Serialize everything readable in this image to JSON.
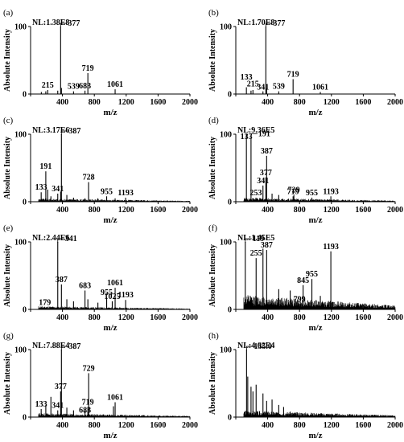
{
  "chart_data": [
    {
      "type": "line",
      "panel_label": "(a)",
      "nl": "NL:1.38E8",
      "xlabel": "m/z",
      "ylabel": "Absolute Intensity",
      "xlim": [
        0,
        2000
      ],
      "ylim": [
        0,
        100
      ],
      "xticks": [
        "0",
        "400",
        "800",
        "1200",
        "1600",
        "2000"
      ],
      "yticks": [
        "0",
        "100"
      ],
      "noise": 0.3,
      "peaks": [
        {
          "x": 135,
          "y": 3
        },
        {
          "x": 191,
          "y": 4
        },
        {
          "x": 215,
          "y": 6
        },
        {
          "x": 341,
          "y": 5
        },
        {
          "x": 377,
          "y": 100
        },
        {
          "x": 387,
          "y": 9
        },
        {
          "x": 539,
          "y": 4
        },
        {
          "x": 683,
          "y": 5
        },
        {
          "x": 719,
          "y": 31
        },
        {
          "x": 1061,
          "y": 7
        }
      ],
      "annotations": [
        {
          "text": "377",
          "x": 377,
          "y": 100,
          "leader": true
        },
        {
          "text": "215",
          "x": 215,
          "y": 6
        },
        {
          "text": "539",
          "x": 539,
          "y": 4
        },
        {
          "text": "683",
          "x": 683,
          "y": 5
        },
        {
          "text": "719",
          "x": 719,
          "y": 31
        },
        {
          "text": "1061",
          "x": 1061,
          "y": 7
        }
      ]
    },
    {
      "type": "line",
      "panel_label": "(b)",
      "nl": "NL:1.70E8",
      "xlabel": "m/z",
      "ylabel": "Absolute Intensity",
      "xlim": [
        0,
        2000
      ],
      "ylim": [
        0,
        100
      ],
      "xticks": [
        "0",
        "400",
        "800",
        "1200",
        "1600",
        "2000"
      ],
      "yticks": [
        "0",
        "100"
      ],
      "noise": 0.3,
      "peaks": [
        {
          "x": 133,
          "y": 10
        },
        {
          "x": 191,
          "y": 5
        },
        {
          "x": 215,
          "y": 6
        },
        {
          "x": 341,
          "y": 4
        },
        {
          "x": 377,
          "y": 100
        },
        {
          "x": 387,
          "y": 8
        },
        {
          "x": 539,
          "y": 4
        },
        {
          "x": 719,
          "y": 22
        },
        {
          "x": 1061,
          "y": 3
        }
      ],
      "annotations": [
        {
          "text": "377",
          "x": 377,
          "y": 100,
          "leader": true
        },
        {
          "text": "133",
          "x": 133,
          "y": 18
        },
        {
          "text": "215",
          "x": 215,
          "y": 8
        },
        {
          "text": "341",
          "x": 341,
          "y": 3
        },
        {
          "text": "539",
          "x": 539,
          "y": 4
        },
        {
          "text": "719",
          "x": 719,
          "y": 22
        },
        {
          "text": "1061",
          "x": 1061,
          "y": 3
        }
      ]
    },
    {
      "type": "line",
      "panel_label": "(c)",
      "nl": "NL:3.17E6",
      "xlabel": "m/z",
      "ylabel": "Absolute Intensity",
      "xlim": [
        0,
        2000
      ],
      "ylim": [
        0,
        100
      ],
      "xticks": [
        "0",
        "400",
        "800",
        "1200",
        "1600",
        "2000"
      ],
      "yticks": [
        "0",
        "100"
      ],
      "noise": 4,
      "peaks": [
        {
          "x": 133,
          "y": 14
        },
        {
          "x": 191,
          "y": 45
        },
        {
          "x": 215,
          "y": 18
        },
        {
          "x": 255,
          "y": 8
        },
        {
          "x": 341,
          "y": 12
        },
        {
          "x": 377,
          "y": 15
        },
        {
          "x": 387,
          "y": 100
        },
        {
          "x": 455,
          "y": 10
        },
        {
          "x": 539,
          "y": 6
        },
        {
          "x": 683,
          "y": 5
        },
        {
          "x": 728,
          "y": 29
        },
        {
          "x": 845,
          "y": 5
        },
        {
          "x": 955,
          "y": 8
        },
        {
          "x": 1061,
          "y": 5
        },
        {
          "x": 1193,
          "y": 6
        }
      ],
      "annotations": [
        {
          "text": "387",
          "x": 387,
          "y": 100,
          "leader": true
        },
        {
          "text": "191",
          "x": 191,
          "y": 45
        },
        {
          "text": "133",
          "x": 133,
          "y": 14
        },
        {
          "text": "341",
          "x": 341,
          "y": 12
        },
        {
          "text": "728",
          "x": 728,
          "y": 29
        },
        {
          "text": "955",
          "x": 955,
          "y": 8
        },
        {
          "text": "1193",
          "x": 1193,
          "y": 6
        }
      ]
    },
    {
      "type": "line",
      "panel_label": "(d)",
      "nl": "NL:9.36E5",
      "xlabel": "m/z",
      "ylabel": "Absolute Intensity",
      "xlim": [
        0,
        2000
      ],
      "ylim": [
        0,
        100
      ],
      "xticks": [
        "0",
        "400",
        "800",
        "1200",
        "1600",
        "2000"
      ],
      "yticks": [
        "0",
        "100"
      ],
      "noise": 5,
      "peaks": [
        {
          "x": 133,
          "y": 100
        },
        {
          "x": 191,
          "y": 96
        },
        {
          "x": 253,
          "y": 6
        },
        {
          "x": 341,
          "y": 24
        },
        {
          "x": 377,
          "y": 36
        },
        {
          "x": 387,
          "y": 68
        },
        {
          "x": 455,
          "y": 12
        },
        {
          "x": 539,
          "y": 10
        },
        {
          "x": 719,
          "y": 8
        },
        {
          "x": 729,
          "y": 10
        },
        {
          "x": 955,
          "y": 6
        },
        {
          "x": 1193,
          "y": 8
        }
      ],
      "annotations": [
        {
          "text": "191",
          "x": 191,
          "y": 96,
          "leader": true
        },
        {
          "text": "133",
          "x": 133,
          "y": 100
        },
        {
          "text": "387",
          "x": 387,
          "y": 68
        },
        {
          "text": "377",
          "x": 377,
          "y": 36
        },
        {
          "text": "341",
          "x": 341,
          "y": 24
        },
        {
          "text": "253",
          "x": 253,
          "y": 6
        },
        {
          "text": "719",
          "x": 719,
          "y": 8
        },
        {
          "text": "729",
          "x": 729,
          "y": 10
        },
        {
          "text": "955",
          "x": 955,
          "y": 6
        },
        {
          "text": "1193",
          "x": 1193,
          "y": 8
        }
      ]
    },
    {
      "type": "line",
      "panel_label": "(e)",
      "nl": "NL:2.44E6",
      "xlabel": "m/z",
      "ylabel": "Absolute Intensity",
      "xlim": [
        0,
        2000
      ],
      "ylim": [
        0,
        100
      ],
      "xticks": [
        "0",
        "400",
        "800",
        "1200",
        "1600",
        "2000"
      ],
      "yticks": [
        "0",
        "100"
      ],
      "noise": 4,
      "peaks": [
        {
          "x": 179,
          "y": 3
        },
        {
          "x": 341,
          "y": 100
        },
        {
          "x": 387,
          "y": 37
        },
        {
          "x": 455,
          "y": 15
        },
        {
          "x": 539,
          "y": 12
        },
        {
          "x": 683,
          "y": 28
        },
        {
          "x": 719,
          "y": 15
        },
        {
          "x": 845,
          "y": 10
        },
        {
          "x": 955,
          "y": 18
        },
        {
          "x": 1025,
          "y": 12
        },
        {
          "x": 1061,
          "y": 32
        },
        {
          "x": 1193,
          "y": 14
        }
      ],
      "annotations": [
        {
          "text": "341",
          "x": 341,
          "y": 100,
          "leader": true
        },
        {
          "text": "179",
          "x": 179,
          "y": 3
        },
        {
          "text": "387",
          "x": 387,
          "y": 37
        },
        {
          "text": "683",
          "x": 683,
          "y": 28
        },
        {
          "text": "955",
          "x": 955,
          "y": 18
        },
        {
          "text": "1025",
          "x": 1025,
          "y": 12
        },
        {
          "text": "1061",
          "x": 1061,
          "y": 32
        },
        {
          "text": "1193",
          "x": 1193,
          "y": 14
        }
      ]
    },
    {
      "type": "line",
      "panel_label": "(f)",
      "nl": "NL:1.45E5",
      "xlabel": "m/z",
      "ylabel": "Absolute Intensity",
      "xlim": [
        0,
        2000
      ],
      "ylim": [
        0,
        100
      ],
      "xticks": [
        "0",
        "400",
        "800",
        "1200",
        "1600",
        "2000"
      ],
      "yticks": [
        "0",
        "100"
      ],
      "noise": 18,
      "peaks": [
        {
          "x": 119,
          "y": 100
        },
        {
          "x": 255,
          "y": 76
        },
        {
          "x": 341,
          "y": 90
        },
        {
          "x": 387,
          "y": 88
        },
        {
          "x": 539,
          "y": 30
        },
        {
          "x": 683,
          "y": 28
        },
        {
          "x": 799,
          "y": 8
        },
        {
          "x": 845,
          "y": 36
        },
        {
          "x": 955,
          "y": 45
        },
        {
          "x": 1061,
          "y": 20
        },
        {
          "x": 1193,
          "y": 86
        }
      ],
      "annotations": [
        {
          "text": "119",
          "x": 119,
          "y": 100,
          "leader": true
        },
        {
          "text": "255",
          "x": 255,
          "y": 76
        },
        {
          "text": "387",
          "x": 387,
          "y": 88
        },
        {
          "text": "799",
          "x": 799,
          "y": 8
        },
        {
          "text": "845",
          "x": 845,
          "y": 36
        },
        {
          "text": "955",
          "x": 955,
          "y": 45
        },
        {
          "text": "1193",
          "x": 1193,
          "y": 86
        }
      ]
    },
    {
      "type": "line",
      "panel_label": "(g)",
      "nl": "NL:7.88E4",
      "xlabel": "m/z",
      "ylabel": "Absolute Intensity",
      "xlim": [
        0,
        2000
      ],
      "ylim": [
        0,
        100
      ],
      "xticks": [
        "0",
        "400",
        "800",
        "1200",
        "1600",
        "2000"
      ],
      "yticks": [
        "0",
        "100"
      ],
      "noise": 5,
      "peaks": [
        {
          "x": 133,
          "y": 12
        },
        {
          "x": 191,
          "y": 18
        },
        {
          "x": 255,
          "y": 30
        },
        {
          "x": 341,
          "y": 10
        },
        {
          "x": 377,
          "y": 38
        },
        {
          "x": 387,
          "y": 100
        },
        {
          "x": 455,
          "y": 14
        },
        {
          "x": 539,
          "y": 10
        },
        {
          "x": 683,
          "y": 9
        },
        {
          "x": 719,
          "y": 15
        },
        {
          "x": 729,
          "y": 65
        },
        {
          "x": 1040,
          "y": 16
        },
        {
          "x": 1061,
          "y": 22
        }
      ],
      "annotations": [
        {
          "text": "387",
          "x": 387,
          "y": 100,
          "leader": true
        },
        {
          "text": "133",
          "x": 133,
          "y": 12
        },
        {
          "text": "377",
          "x": 377,
          "y": 38
        },
        {
          "text": "341",
          "x": 341,
          "y": 10
        },
        {
          "text": "729",
          "x": 729,
          "y": 65
        },
        {
          "text": "719",
          "x": 719,
          "y": 15
        },
        {
          "text": "683",
          "x": 683,
          "y": 3
        },
        {
          "text": "1061",
          "x": 1061,
          "y": 22
        }
      ]
    },
    {
      "type": "line",
      "panel_label": "(h)",
      "nl": "NL:4.62E4",
      "xlabel": "m/z",
      "ylabel": "Absolute Intensity",
      "xlim": [
        0,
        2000
      ],
      "ylim": [
        0,
        100
      ],
      "xticks": [
        "0",
        "400",
        "800",
        "1200",
        "1600",
        "2000"
      ],
      "yticks": [
        "0",
        "100"
      ],
      "noise": 8,
      "peaks": [
        {
          "x": 135,
          "y": 100
        },
        {
          "x": 150,
          "y": 60
        },
        {
          "x": 191,
          "y": 45
        },
        {
          "x": 215,
          "y": 38
        },
        {
          "x": 255,
          "y": 48
        },
        {
          "x": 341,
          "y": 35
        },
        {
          "x": 387,
          "y": 24
        },
        {
          "x": 455,
          "y": 26
        },
        {
          "x": 539,
          "y": 18
        },
        {
          "x": 600,
          "y": 15
        },
        {
          "x": 683,
          "y": 8
        }
      ],
      "annotations": [
        {
          "text": "135.0",
          "x": 135,
          "y": 100,
          "leader": true
        }
      ]
    }
  ]
}
